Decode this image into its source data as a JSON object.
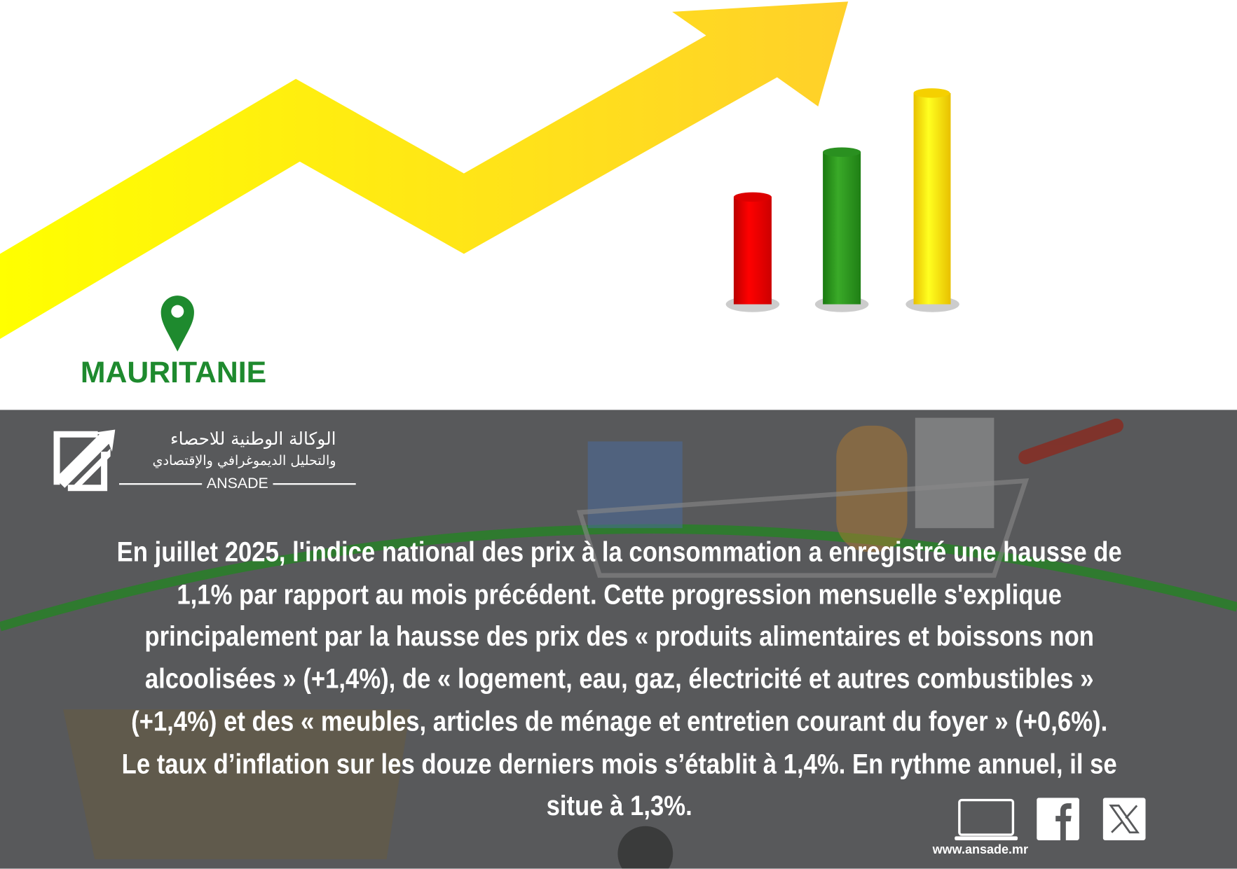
{
  "header": {
    "country": "MAURITANIE"
  },
  "logo": {
    "arabic_line1": "الوكالة الوطنية للاحصاء",
    "arabic_line2": "والتحليل الديموغرافي والإقتصادي",
    "acronym": "ANSADE"
  },
  "body": {
    "lines": [
      "En juillet 2025, l'indice national des prix à la consommation a enregistré une hausse de",
      "1,1% par rapport au mois précédent. Cette progression mensuelle s'explique",
      "principalement par la hausse des prix des « produits alimentaires et boissons non",
      "alcoolisées » (+1,4%), de « logement, eau, gaz, électricité et autres combustibles »",
      "(+1,4%) et des « meubles, articles de ménage et entretien courant du foyer » (+0,6%).",
      "Le taux d’inflation sur les douze derniers mois s’établit à 1,4%. En rythme annuel, il se",
      "situe à 1,3%."
    ]
  },
  "footer": {
    "website": "www.ansade.mr",
    "icons": [
      "laptop-icon",
      "facebook-icon",
      "x-icon"
    ]
  },
  "colors": {
    "arrow": "#ffe500",
    "green": "#1e8a2e",
    "red": "#e00000",
    "bar_green": "#2e9a22",
    "bar_yellow": "#ffe000",
    "panel": "#58595b"
  }
}
